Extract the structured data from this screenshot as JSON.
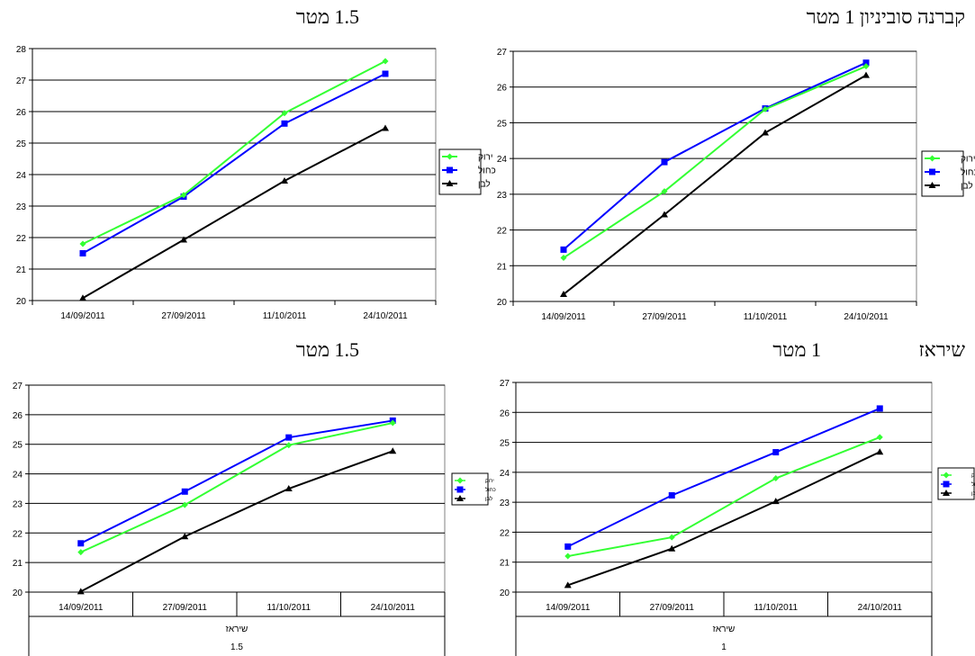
{
  "headings": {
    "h1": "קברנה סוביניון 1 מטר",
    "h2": "1.5 מטר",
    "h3_main": "שיראז",
    "h3_sub": "1 מטר",
    "h4": "1.5 מטר"
  },
  "colors": {
    "green": "#33ff33",
    "blue": "#0000ff",
    "black": "#000000"
  },
  "chart_data": [
    {
      "type": "line",
      "categories": [
        "14/09/2011",
        "27/09/2011",
        "11/10/2011",
        "24/10/2011"
      ],
      "ylim": [
        20,
        27
      ],
      "yticks": [
        20,
        21,
        22,
        23,
        24,
        25,
        26,
        27
      ],
      "grid": true,
      "legend": "right",
      "series": [
        {
          "name": "ירוק",
          "color": "#33ff33",
          "marker": "diamond",
          "values": [
            21.22,
            23.08,
            25.38,
            26.58
          ]
        },
        {
          "name": "כחול",
          "color": "#0000ff",
          "marker": "square",
          "values": [
            21.45,
            23.9,
            25.4,
            26.68
          ]
        },
        {
          "name": "לבן",
          "color": "#000000",
          "marker": "triangle",
          "values": [
            20.2,
            22.43,
            24.72,
            26.33
          ]
        }
      ]
    },
    {
      "type": "line",
      "categories": [
        "14/09/2011",
        "27/09/2011",
        "11/10/2011",
        "24/10/2011"
      ],
      "ylim": [
        20,
        28
      ],
      "yticks": [
        20,
        21,
        22,
        23,
        24,
        25,
        26,
        27,
        28
      ],
      "grid": true,
      "legend": "right",
      "series": [
        {
          "name": "ירוק",
          "color": "#33ff33",
          "marker": "diamond",
          "values": [
            21.8,
            23.35,
            25.95,
            27.6
          ]
        },
        {
          "name": "כחול",
          "color": "#0000ff",
          "marker": "square",
          "values": [
            21.5,
            23.3,
            25.62,
            27.2
          ]
        },
        {
          "name": "לבן",
          "color": "#000000",
          "marker": "triangle",
          "values": [
            20.08,
            21.93,
            23.8,
            25.47
          ]
        }
      ]
    },
    {
      "type": "line",
      "categories": [
        "14/09/2011",
        "27/09/2011",
        "11/10/2011",
        "24/10/2011"
      ],
      "xlabel": "שיראז",
      "xsublabel": "1",
      "ylim": [
        20,
        27
      ],
      "yticks": [
        20,
        21,
        22,
        23,
        24,
        25,
        26,
        27
      ],
      "grid": true,
      "legend": "right",
      "series": [
        {
          "name": "ירוק",
          "color": "#33ff33",
          "marker": "diamond",
          "values": [
            21.2,
            21.83,
            23.8,
            25.17
          ]
        },
        {
          "name": "כחול",
          "color": "#0000ff",
          "marker": "square",
          "values": [
            21.52,
            23.23,
            24.67,
            26.13
          ]
        },
        {
          "name": "לבן",
          "color": "#000000",
          "marker": "triangle",
          "values": [
            20.23,
            21.45,
            23.03,
            24.68
          ]
        }
      ]
    },
    {
      "type": "line",
      "categories": [
        "14/09/2011",
        "27/09/2011",
        "11/10/2011",
        "24/10/2011"
      ],
      "xlabel": "שיראז",
      "xsublabel": "1.5",
      "ylim": [
        20,
        27
      ],
      "yticks": [
        20,
        21,
        22,
        23,
        24,
        25,
        26,
        27
      ],
      "grid": true,
      "legend": "right",
      "series": [
        {
          "name": "ירוק",
          "color": "#33ff33",
          "marker": "diamond",
          "values": [
            21.35,
            22.95,
            24.97,
            25.72
          ]
        },
        {
          "name": "כחול",
          "color": "#0000ff",
          "marker": "square",
          "values": [
            21.65,
            23.4,
            25.23,
            25.8
          ]
        },
        {
          "name": "לבן",
          "color": "#000000",
          "marker": "triangle",
          "values": [
            20.02,
            21.88,
            23.5,
            24.77
          ]
        }
      ]
    }
  ]
}
